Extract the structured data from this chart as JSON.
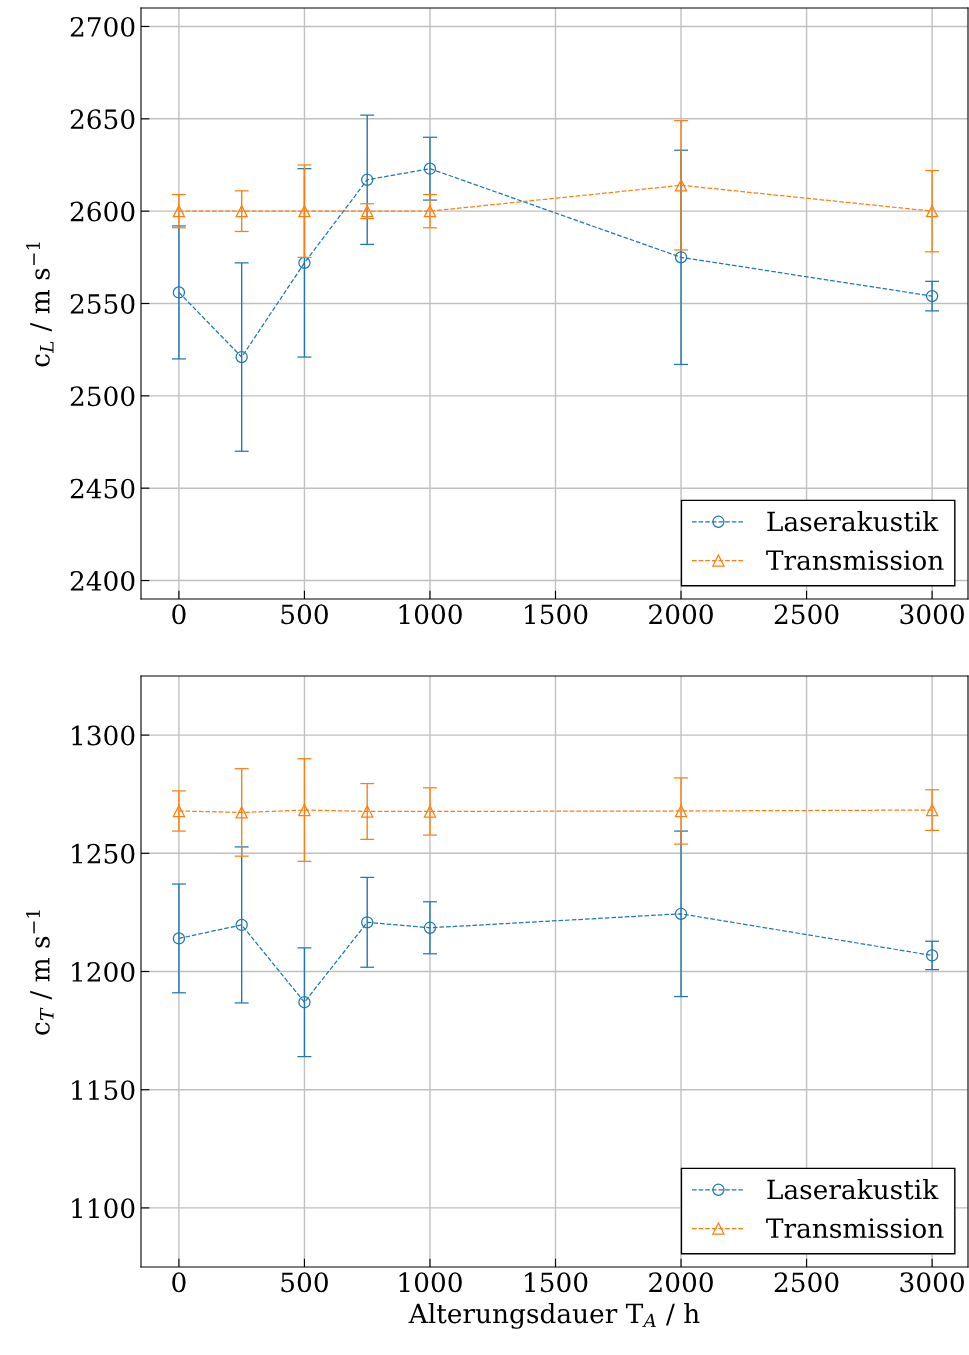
{
  "chart_data": [
    {
      "type": "line",
      "ylabel": "c$_{L}$ / m s$^{−1}$",
      "x": [
        0,
        250,
        500,
        750,
        1000,
        2000,
        3000
      ],
      "xlim": [
        -151,
        3143
      ],
      "xticks": [
        0,
        500,
        1000,
        1500,
        2000,
        2500,
        3000
      ],
      "ylim": [
        2390,
        2710
      ],
      "yticks": [
        2400,
        2450,
        2500,
        2550,
        2600,
        2650,
        2700
      ],
      "grid": true,
      "legend": "bottom right",
      "line_style": "dashed",
      "series": [
        {
          "name": "Laserakustik",
          "color": "#1f77b4",
          "marker": "circle",
          "values": [
            2556,
            2521,
            2572,
            2617,
            2623,
            2575,
            2554
          ],
          "errors": [
            36,
            51,
            51,
            35,
            17,
            58,
            8
          ]
        },
        {
          "name": "Transmission",
          "color": "#ff7f0e",
          "marker": "triangle",
          "values": [
            2600,
            2600,
            2600,
            2600,
            2600,
            2614,
            2600
          ],
          "errors": [
            9,
            11,
            25,
            4,
            9,
            35,
            22
          ]
        }
      ]
    },
    {
      "type": "line",
      "xlabel": "Alterungsdauer T$_{A}$ / h",
      "ylabel": "c$_{T}$ / m s$^{−1}$",
      "x": [
        0,
        250,
        500,
        750,
        1000,
        2000,
        3000
      ],
      "xlim": [
        -151,
        3143
      ],
      "xticks": [
        0,
        500,
        1000,
        1500,
        2000,
        2500,
        3000
      ],
      "ylim": [
        1075,
        1325
      ],
      "yticks": [
        1100,
        1150,
        1200,
        1250,
        1300
      ],
      "grid": true,
      "legend": "bottom right",
      "line_style": "dashed",
      "series": [
        {
          "name": "Laserakustik",
          "color": "#1f77b4",
          "marker": "circle",
          "values": [
            1214,
            1219.7,
            1187,
            1220.8,
            1218.5,
            1224.4,
            1206.8
          ],
          "errors": [
            23,
            33,
            23,
            19,
            11,
            35,
            6
          ]
        },
        {
          "name": "Transmission",
          "color": "#ff7f0e",
          "marker": "triangle",
          "values": [
            1267.9,
            1267.3,
            1268.3,
            1267.7,
            1267.7,
            1267.9,
            1268.3
          ],
          "errors": [
            8.5,
            18.5,
            21.7,
            11.8,
            10,
            14,
            8.6
          ]
        }
      ]
    }
  ]
}
